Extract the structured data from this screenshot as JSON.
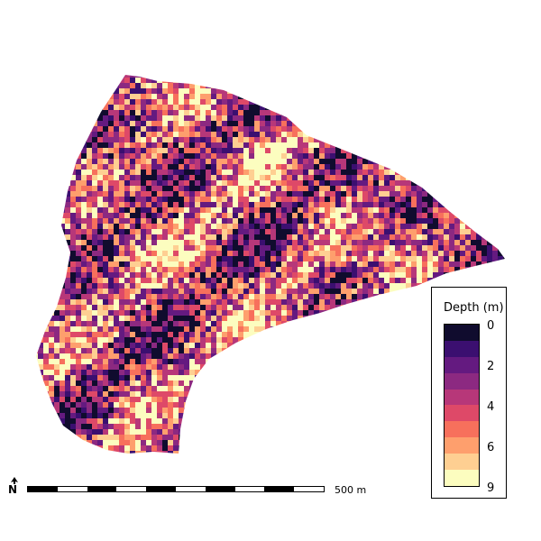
{
  "map": {
    "variable": "water depth",
    "palette": [
      "#100c2e",
      "#3b0f70",
      "#641a80",
      "#8c2981",
      "#b73779",
      "#de4968",
      "#f7705c",
      "#fe9f6d",
      "#fecf92",
      "#fcfdbf"
    ]
  },
  "legend": {
    "title": "Depth (m)",
    "ticks": [
      "0",
      "2",
      "4",
      "6",
      "9"
    ],
    "swatches": [
      {
        "color": "#100c2e"
      },
      {
        "color": "#3b0f70"
      },
      {
        "color": "#641a80"
      },
      {
        "color": "#8c2981"
      },
      {
        "color": "#b73779"
      },
      {
        "color": "#de4968"
      },
      {
        "color": "#f7705c"
      },
      {
        "color": "#fe9f6d"
      },
      {
        "color": "#fecf92"
      },
      {
        "color": "#fcfdbf"
      }
    ]
  },
  "scalebar": {
    "label": "500 m",
    "segments": 10
  },
  "north_arrow": {
    "letter": "N",
    "icon": "north-arrow-icon"
  }
}
